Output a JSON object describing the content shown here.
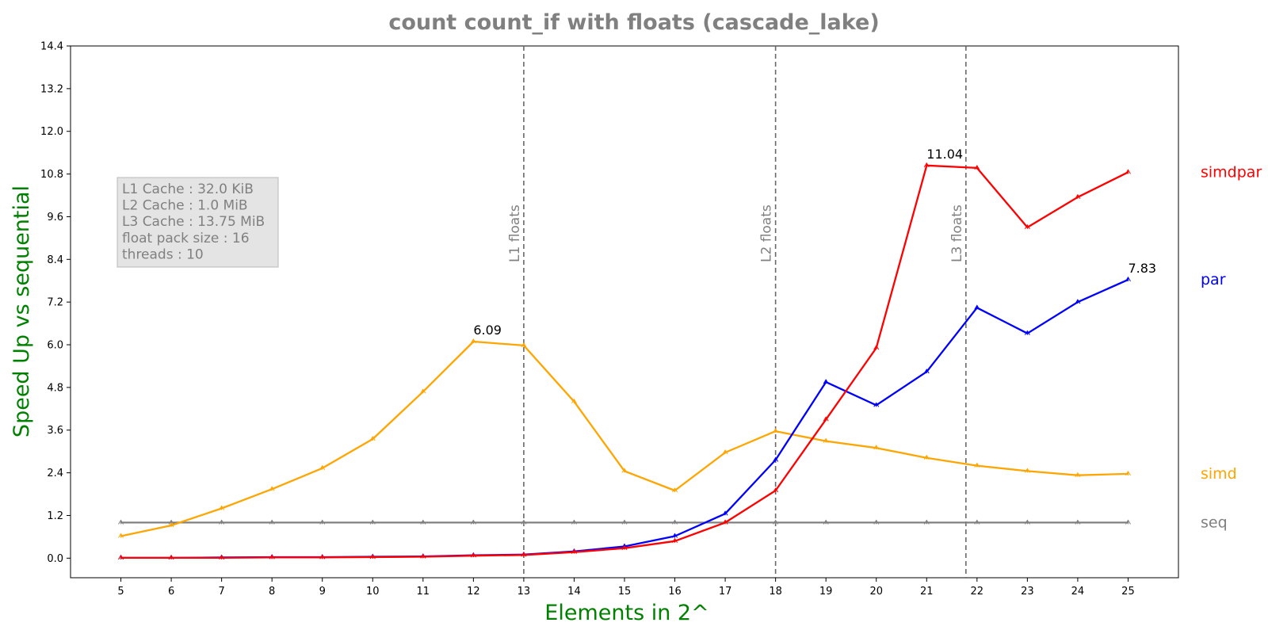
{
  "chart_data": {
    "type": "line",
    "title": "count count_if with floats  (cascade_lake)",
    "xlabel": "Elements in 2^",
    "ylabel": "Speed Up vs sequential",
    "x": [
      5,
      6,
      7,
      8,
      9,
      10,
      11,
      12,
      13,
      14,
      15,
      16,
      17,
      18,
      19,
      20,
      21,
      22,
      23,
      24,
      25
    ],
    "xlim": [
      4,
      26
    ],
    "ylim": [
      -0.55,
      14.4
    ],
    "yticks": [
      "0.0",
      "1.2",
      "2.4",
      "3.6",
      "4.8",
      "6.0",
      "7.2",
      "8.4",
      "9.6",
      "10.8",
      "12.0",
      "13.2",
      "14.4"
    ],
    "grid": false,
    "series": [
      {
        "name": "seq",
        "color": "#808080",
        "values": [
          1,
          1,
          1,
          1,
          1,
          1,
          1,
          1,
          1,
          1,
          1,
          1,
          1,
          1,
          1,
          1,
          1,
          1,
          1,
          1,
          1
        ]
      },
      {
        "name": "simd",
        "color": "#FFA500",
        "values": [
          0.62,
          0.92,
          1.4,
          1.94,
          2.53,
          3.35,
          4.68,
          6.09,
          5.98,
          4.4,
          2.45,
          1.9,
          2.97,
          3.57,
          3.29,
          3.1,
          2.82,
          2.6,
          2.45,
          2.33,
          2.37
        ]
      },
      {
        "name": "par",
        "color": "#0000FF",
        "values": [
          0.01,
          0.01,
          0.02,
          0.03,
          0.03,
          0.04,
          0.05,
          0.08,
          0.1,
          0.19,
          0.33,
          0.62,
          1.25,
          2.76,
          4.95,
          4.3,
          5.24,
          7.04,
          6.32,
          7.2,
          7.83
        ]
      },
      {
        "name": "simdpar",
        "color": "#FF0000",
        "values": [
          0.01,
          0.01,
          0.01,
          0.02,
          0.02,
          0.03,
          0.04,
          0.07,
          0.09,
          0.17,
          0.28,
          0.48,
          1.0,
          1.9,
          3.9,
          5.91,
          11.04,
          10.97,
          9.3,
          10.15,
          10.85
        ]
      }
    ],
    "vlines": [
      {
        "x": 13,
        "label": "L1 floats"
      },
      {
        "x": 18,
        "label": "L2 floats"
      },
      {
        "x": 21.78,
        "label": "L3 floats"
      }
    ],
    "annotations": [
      {
        "x": 12,
        "y": 6.09,
        "text": "6.09"
      },
      {
        "x": 21,
        "y": 11.04,
        "text": "11.04"
      },
      {
        "x": 25,
        "y": 7.83,
        "text": "7.83"
      }
    ],
    "info_box": [
      "L1 Cache : 32.0 KiB",
      "L2 Cache : 1.0 MiB",
      "L3 Cache : 13.75 MiB",
      "float pack size : 16",
      "threads : 10"
    ],
    "legend_placement": "right, labels beside line ends"
  }
}
